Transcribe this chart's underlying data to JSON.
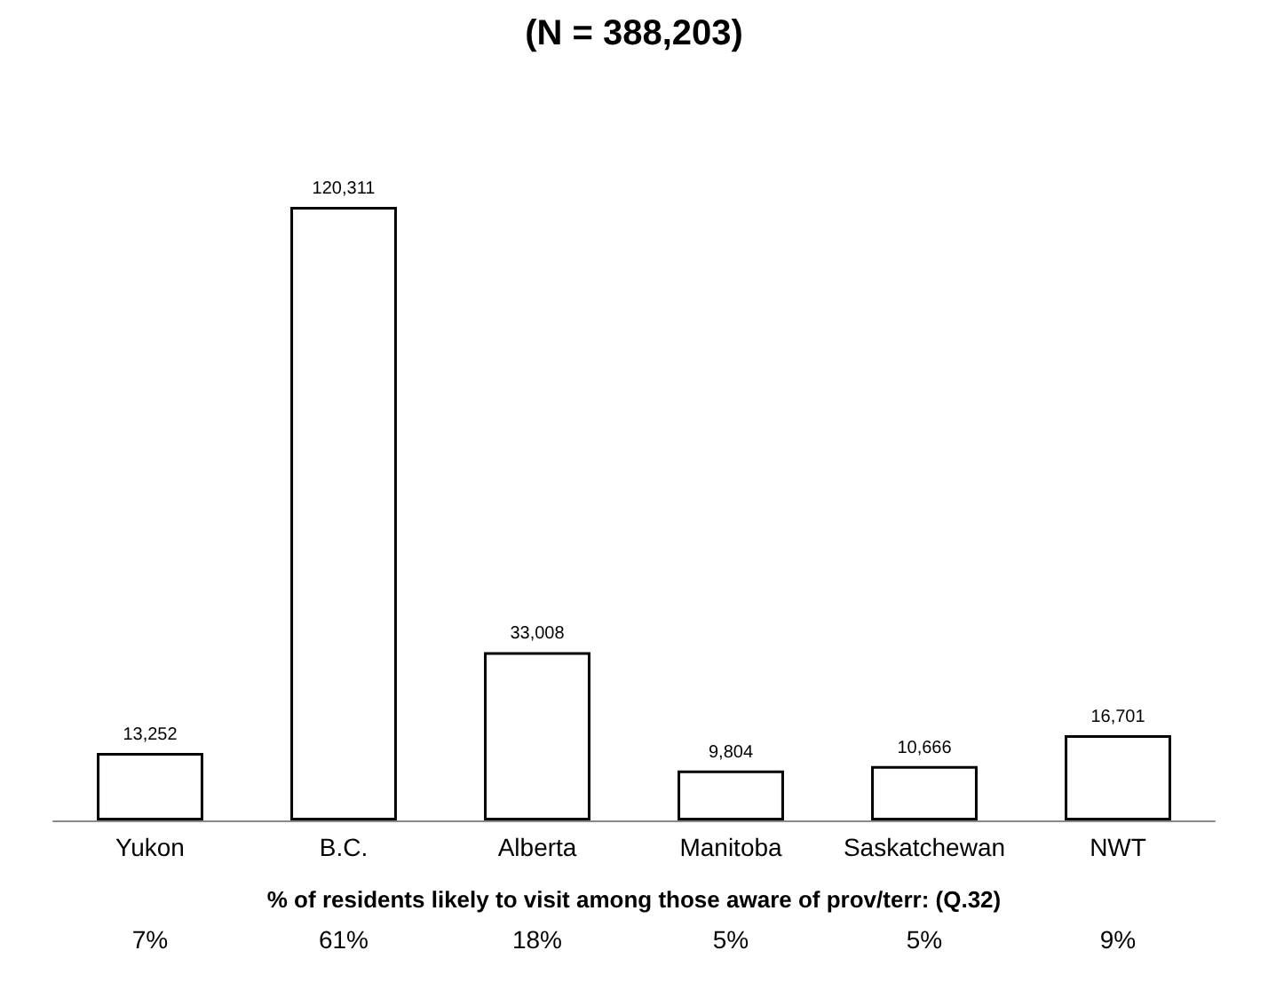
{
  "chart_data": {
    "type": "bar",
    "title": "(N = 388,203)",
    "categories": [
      "Yukon",
      "B.C.",
      "Alberta",
      "Manitoba",
      "Saskatchewan",
      "NWT"
    ],
    "values": [
      13252,
      120311,
      33008,
      9804,
      10666,
      16701
    ],
    "value_labels": [
      "13,252",
      "120,311",
      "33,008",
      "9,804",
      "10,666",
      "16,701"
    ],
    "color": "#ffffff",
    "xlabel": "% of residents likely to visit among those aware of prov/terr: (Q.32)",
    "annotations": [
      "7%",
      "61%",
      "18%",
      "5%",
      "5%",
      "9%"
    ]
  }
}
